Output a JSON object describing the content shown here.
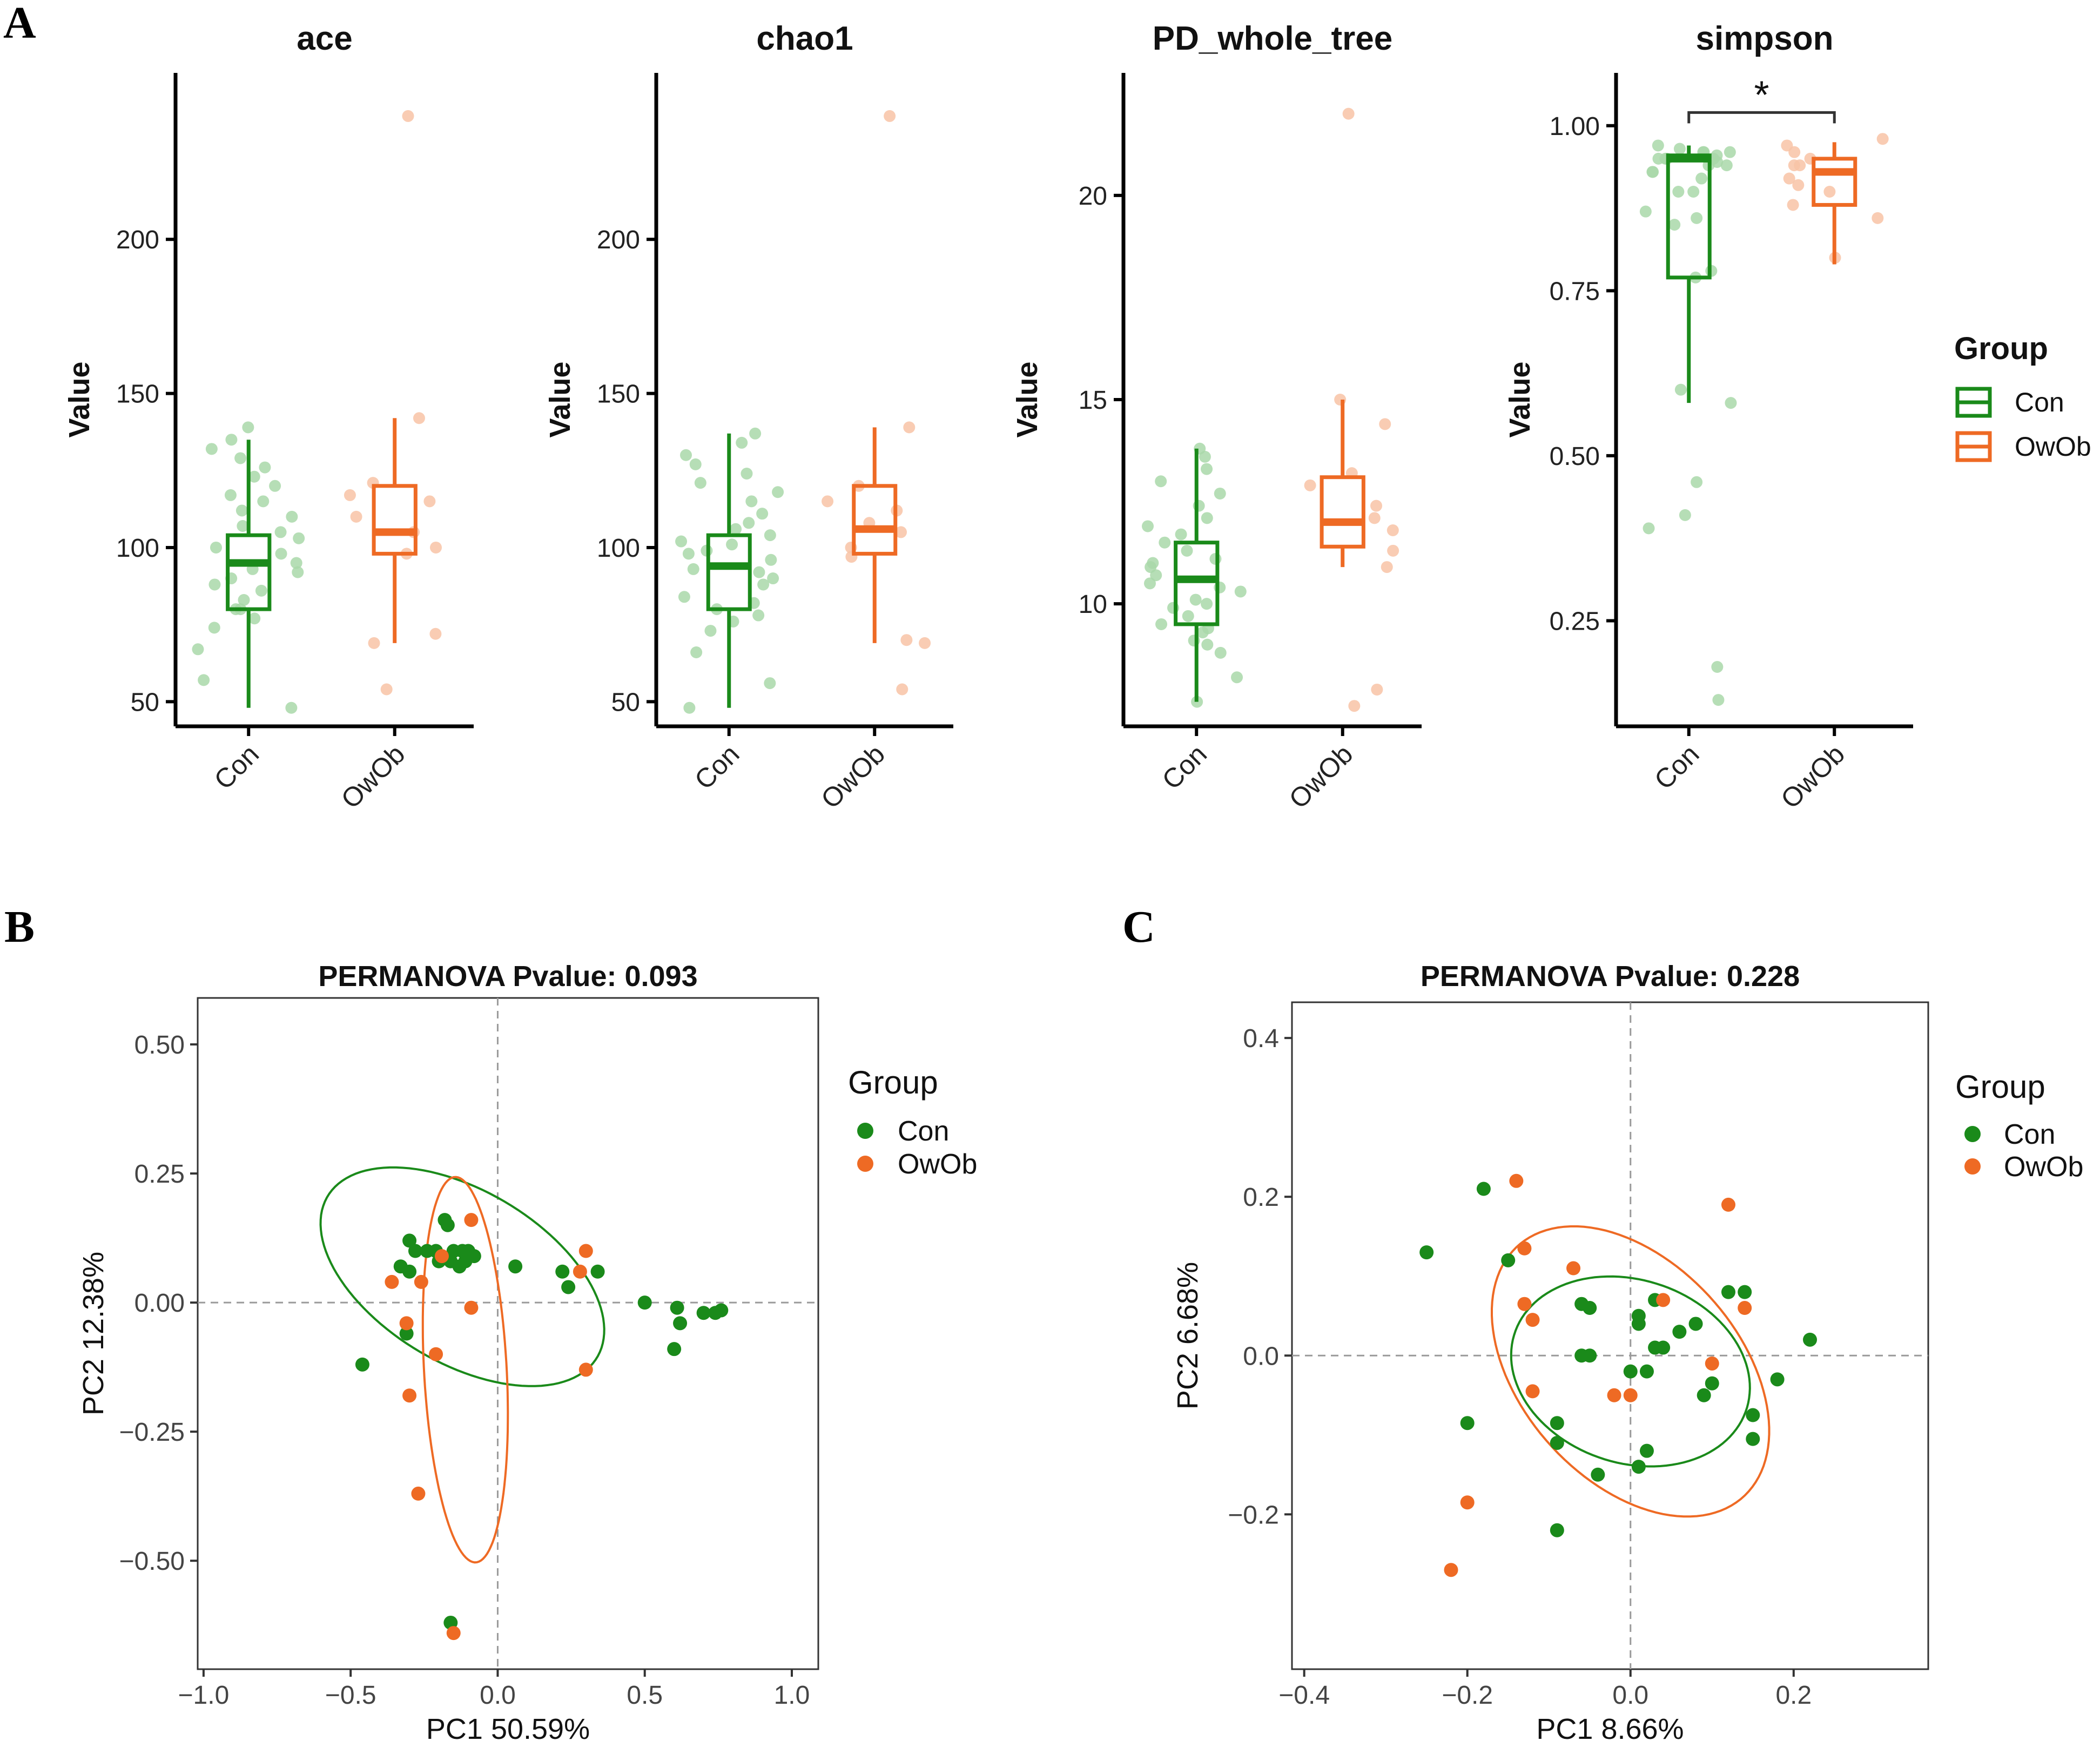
{
  "panel_labels": [
    "A",
    "B",
    "C"
  ],
  "colors": {
    "con": "#1a8a1a",
    "owob": "#ee6a24",
    "con_light": "#a9d8a9",
    "owob_light": "#f8c3a6",
    "axis": "#000000",
    "grid_ref": "#9a9a9a",
    "sig": "#333333"
  },
  "legend_A": {
    "title": "Group",
    "items": [
      "Con",
      "OwOb"
    ]
  },
  "legend_B": {
    "title": "Group",
    "items": [
      "Con",
      "OwOb"
    ]
  },
  "legend_C": {
    "title": "Group",
    "items": [
      "Con",
      "OwOb"
    ]
  },
  "chart_data": [
    {
      "id": "ace",
      "type": "box",
      "title": "ace",
      "xlabel": "",
      "ylabel": "Value",
      "categories": [
        "Con",
        "OwOb"
      ],
      "ylim": [
        42,
        254
      ],
      "yticks": [
        50,
        100,
        150,
        200
      ],
      "box": [
        {
          "name": "Con",
          "min": 48,
          "q1": 80,
          "median": 95,
          "q3": 104,
          "max": 135
        },
        {
          "name": "OwOb",
          "min": 69,
          "q1": 98,
          "median": 105,
          "q3": 120,
          "max": 142
        }
      ],
      "points": [
        [
          48,
          57,
          77,
          80,
          83,
          86,
          88,
          90,
          93,
          95,
          98,
          100,
          103,
          105,
          107,
          110,
          112,
          115,
          117,
          120,
          123,
          126,
          129,
          132,
          135,
          139,
          67,
          74,
          80,
          92
        ],
        [
          54,
          69,
          72,
          98,
          100,
          105,
          110,
          115,
          117,
          121,
          142,
          240
        ]
      ],
      "significance": null
    },
    {
      "id": "chao1",
      "type": "box",
      "title": "chao1",
      "xlabel": "",
      "ylabel": "Value",
      "categories": [
        "Con",
        "OwOb"
      ],
      "ylim": [
        42,
        254
      ],
      "yticks": [
        50,
        100,
        150,
        200
      ],
      "box": [
        {
          "name": "Con",
          "min": 48,
          "q1": 80,
          "median": 94,
          "q3": 104,
          "max": 137
        },
        {
          "name": "OwOb",
          "min": 69,
          "q1": 98,
          "median": 106,
          "q3": 120,
          "max": 139
        }
      ],
      "points": [
        [
          48,
          56,
          76,
          78,
          80,
          82,
          84,
          88,
          90,
          93,
          96,
          98,
          101,
          104,
          106,
          108,
          111,
          115,
          118,
          121,
          124,
          127,
          130,
          134,
          137,
          92,
          66,
          73,
          99,
          102
        ],
        [
          54,
          69,
          70,
          97,
          100,
          105,
          108,
          112,
          115,
          120,
          139,
          240
        ]
      ],
      "significance": null
    },
    {
      "id": "PD_whole_tree",
      "type": "box",
      "title": "PD_whole_tree",
      "xlabel": "",
      "ylabel": "Value",
      "categories": [
        "Con",
        "OwOb"
      ],
      "ylim": [
        7.0,
        23.0
      ],
      "yticks": [
        10,
        15,
        20
      ],
      "box": [
        {
          "name": "Con",
          "min": 7.6,
          "q1": 9.5,
          "median": 10.6,
          "q3": 11.5,
          "max": 13.8
        },
        {
          "name": "OwOb",
          "min": 10.9,
          "q1": 11.4,
          "median": 12.0,
          "q3": 13.1,
          "max": 15.0
        }
      ],
      "points": [
        [
          7.6,
          8.2,
          8.8,
          9.0,
          9.1,
          9.3,
          9.5,
          9.7,
          9.9,
          10.1,
          10.3,
          10.5,
          10.7,
          10.9,
          11.1,
          11.3,
          11.5,
          11.7,
          11.9,
          12.1,
          12.4,
          12.7,
          13.0,
          13.3,
          13.6,
          13.8,
          10.0,
          10.4,
          11.0,
          9.4
        ],
        [
          7.5,
          7.9,
          10.9,
          11.3,
          11.8,
          12.1,
          12.4,
          12.9,
          13.2,
          14.4,
          15.0,
          22.0
        ]
      ],
      "significance": null
    },
    {
      "id": "simpson",
      "type": "box",
      "title": "simpson",
      "xlabel": "",
      "ylabel": "Value",
      "categories": [
        "Con",
        "OwOb"
      ],
      "ylim": [
        0.09,
        1.08
      ],
      "yticks": [
        0.25,
        0.5,
        0.75,
        1.0
      ],
      "ytick_labels": [
        "0.25",
        "0.50",
        "0.75",
        "1.00"
      ],
      "box": [
        {
          "name": "Con",
          "min": 0.58,
          "q1": 0.77,
          "median": 0.95,
          "q3": 0.955,
          "max": 0.97
        },
        {
          "name": "OwOb",
          "min": 0.79,
          "q1": 0.88,
          "median": 0.93,
          "q3": 0.95,
          "max": 0.975
        }
      ],
      "points": [
        [
          0.13,
          0.18,
          0.39,
          0.41,
          0.46,
          0.58,
          0.6,
          0.77,
          0.78,
          0.85,
          0.86,
          0.87,
          0.9,
          0.92,
          0.93,
          0.94,
          0.945,
          0.95,
          0.955,
          0.96,
          0.965,
          0.97,
          0.95,
          0.94,
          0.93,
          0.96,
          0.95,
          0.9,
          0.95,
          0.96
        ],
        [
          0.8,
          0.86,
          0.88,
          0.9,
          0.91,
          0.92,
          0.94,
          0.95,
          0.96,
          0.97,
          0.98,
          0.94
        ]
      ],
      "significance": {
        "from": "Con",
        "to": "OwOb",
        "y": 1.02,
        "label": "*"
      }
    },
    {
      "id": "pcoa_B",
      "type": "scatter",
      "title": "PERMANOVA Pvalue: 0.093",
      "xlabel": "PC1 50.59%",
      "ylabel": "PC2 12.38%",
      "xlim": [
        -1.02,
        1.09
      ],
      "ylim": [
        -0.71,
        0.59
      ],
      "xticks": [
        -1.0,
        -0.5,
        0.0,
        0.5,
        1.0
      ],
      "xtick_labels": [
        "−1.0",
        "−0.5",
        "0.0",
        "0.5",
        "1.0"
      ],
      "yticks": [
        -0.5,
        -0.25,
        0.0,
        0.25,
        0.5
      ],
      "ytick_labels": [
        "−0.50",
        "−0.25",
        "0.00",
        "0.25",
        "0.50"
      ],
      "series": [
        {
          "name": "Con",
          "points": [
            [
              -0.46,
              -0.12
            ],
            [
              -0.33,
              0.07
            ],
            [
              -0.31,
              -0.06
            ],
            [
              -0.3,
              0.12
            ],
            [
              -0.3,
              0.06
            ],
            [
              -0.28,
              0.1
            ],
            [
              -0.24,
              0.1
            ],
            [
              -0.21,
              0.1
            ],
            [
              -0.2,
              0.08
            ],
            [
              -0.18,
              0.16
            ],
            [
              -0.17,
              0.15
            ],
            [
              -0.16,
              0.08
            ],
            [
              -0.15,
              0.1
            ],
            [
              -0.13,
              0.07
            ],
            [
              -0.12,
              0.1
            ],
            [
              -0.11,
              0.08
            ],
            [
              -0.1,
              0.1
            ],
            [
              -0.08,
              0.09
            ],
            [
              0.06,
              0.07
            ],
            [
              0.22,
              0.06
            ],
            [
              0.24,
              0.03
            ],
            [
              0.34,
              0.06
            ],
            [
              0.5,
              0.0
            ],
            [
              0.6,
              -0.09
            ],
            [
              0.61,
              -0.01
            ],
            [
              0.62,
              -0.04
            ],
            [
              0.7,
              -0.02
            ],
            [
              0.74,
              -0.02
            ],
            [
              0.76,
              -0.015
            ],
            [
              -0.16,
              -0.62
            ]
          ]
        },
        {
          "name": "OwOb",
          "points": [
            [
              -0.36,
              0.04
            ],
            [
              -0.31,
              -0.04
            ],
            [
              -0.3,
              -0.18
            ],
            [
              -0.26,
              0.04
            ],
            [
              -0.21,
              -0.1
            ],
            [
              -0.19,
              0.09
            ],
            [
              -0.09,
              0.16
            ],
            [
              -0.09,
              -0.01
            ],
            [
              0.28,
              0.06
            ],
            [
              0.3,
              0.1
            ],
            [
              0.3,
              -0.13
            ],
            [
              -0.27,
              -0.37
            ],
            [
              -0.15,
              -0.64
            ]
          ]
        }
      ],
      "ellipses": [
        {
          "group": "Con",
          "center": [
            -0.12,
            0.05
          ],
          "radii": [
            0.99,
            0.36
          ],
          "rotation_deg": -14
        },
        {
          "group": "OwOb",
          "center": [
            -0.11,
            -0.13
          ],
          "radii": [
            0.75,
            0.28
          ],
          "rotation_deg": 96
        }
      ],
      "ref_lines": {
        "x": 0,
        "y": 0
      }
    },
    {
      "id": "pcoa_C",
      "type": "scatter",
      "title": "PERMANOVA Pvalue: 0.228",
      "xlabel": "PC1 8.66%",
      "ylabel": "PC2 6.68%",
      "xlim": [
        -0.415,
        0.365
      ],
      "ylim": [
        -0.395,
        0.445
      ],
      "xticks": [
        -0.4,
        -0.2,
        0.0,
        0.2
      ],
      "xtick_labels": [
        "−0.4",
        "−0.2",
        "0.0",
        "0.2"
      ],
      "yticks": [
        -0.2,
        0.0,
        0.2,
        0.4
      ],
      "ytick_labels": [
        "−0.2",
        "0.0",
        "0.2",
        "0.4"
      ],
      "series": [
        {
          "name": "Con",
          "points": [
            [
              -0.25,
              0.13
            ],
            [
              -0.18,
              0.21
            ],
            [
              -0.15,
              0.12
            ],
            [
              -0.2,
              -0.085
            ],
            [
              -0.09,
              -0.085
            ],
            [
              -0.09,
              -0.11
            ],
            [
              -0.06,
              0.065
            ],
            [
              -0.05,
              0.06
            ],
            [
              -0.06,
              0.0
            ],
            [
              -0.05,
              0.0
            ],
            [
              -0.04,
              -0.15
            ],
            [
              0.0,
              -0.02
            ],
            [
              0.01,
              0.05
            ],
            [
              0.01,
              0.04
            ],
            [
              0.02,
              -0.02
            ],
            [
              0.03,
              0.07
            ],
            [
              0.03,
              0.01
            ],
            [
              0.04,
              0.01
            ],
            [
              0.06,
              0.03
            ],
            [
              0.08,
              0.04
            ],
            [
              0.09,
              -0.05
            ],
            [
              0.1,
              -0.035
            ],
            [
              0.12,
              0.08
            ],
            [
              0.14,
              0.08
            ],
            [
              0.15,
              -0.075
            ],
            [
              0.15,
              -0.105
            ],
            [
              0.18,
              -0.03
            ],
            [
              0.22,
              0.02
            ],
            [
              0.01,
              -0.14
            ],
            [
              -0.09,
              -0.22
            ],
            [
              0.02,
              -0.12
            ]
          ]
        },
        {
          "name": "OwOb",
          "points": [
            [
              -0.14,
              0.22
            ],
            [
              -0.13,
              0.135
            ],
            [
              -0.13,
              0.065
            ],
            [
              -0.12,
              0.045
            ],
            [
              -0.07,
              0.11
            ],
            [
              -0.12,
              -0.045
            ],
            [
              -0.02,
              -0.05
            ],
            [
              0.0,
              -0.05
            ],
            [
              0.04,
              0.07
            ],
            [
              0.1,
              -0.01
            ],
            [
              0.12,
              0.19
            ],
            [
              0.14,
              0.06
            ],
            [
              -0.2,
              -0.185
            ],
            [
              -0.22,
              -0.27
            ]
          ]
        }
      ],
      "ellipses": [
        {
          "group": "Con",
          "center": [
            0.0,
            -0.02
          ],
          "radii": [
            0.3,
            0.23
          ],
          "rotation_deg": -20
        },
        {
          "group": "OwOb",
          "center": [
            0.0,
            -0.02
          ],
          "radii": [
            0.42,
            0.27
          ],
          "rotation_deg": -50
        }
      ],
      "ref_lines": {
        "x": 0,
        "y": 0
      }
    }
  ]
}
